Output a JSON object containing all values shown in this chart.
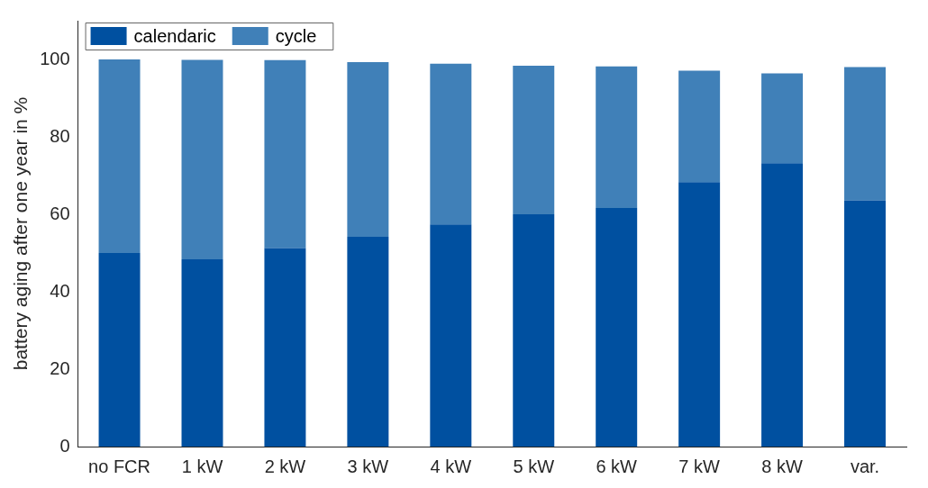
{
  "chart_data": {
    "type": "bar",
    "stacked": true,
    "ylabel": "battery aging after one year in %",
    "categories": [
      "no FCR",
      "1 kW",
      "2 kW",
      "3 kW",
      "4 kW",
      "5 kW",
      "6 kW",
      "7 kW",
      "8 kW",
      "var."
    ],
    "series": [
      {
        "name": "calendaric",
        "color": "#0050a0",
        "values": [
          50.0,
          48.4,
          51.3,
          54.2,
          57.4,
          60.0,
          61.6,
          68.3,
          73.2,
          63.6
        ]
      },
      {
        "name": "cycle",
        "color": "#4080b8",
        "values": [
          50.0,
          51.5,
          48.5,
          45.1,
          41.5,
          38.4,
          36.6,
          28.8,
          23.2,
          34.4
        ]
      }
    ],
    "ylim": [
      0,
      110
    ],
    "yticks": [
      0,
      20,
      40,
      60,
      80,
      100
    ],
    "grid": false,
    "legend": "top left"
  }
}
